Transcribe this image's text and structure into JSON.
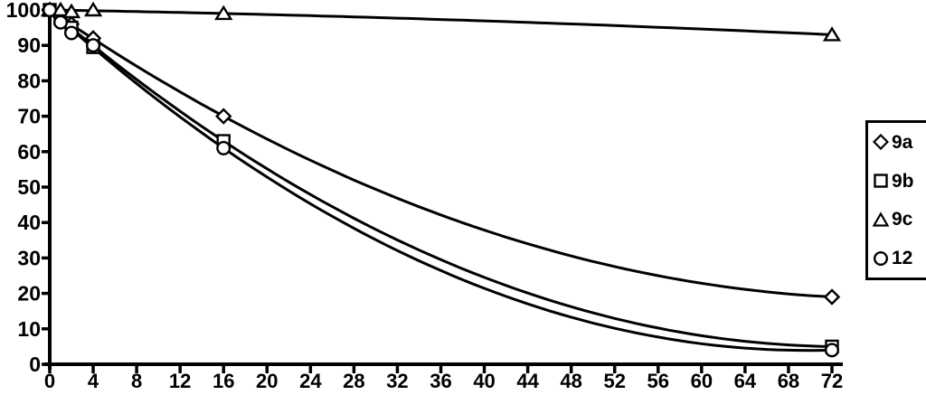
{
  "legend": {
    "items": [
      {
        "label": "9a",
        "marker": "diamond"
      },
      {
        "label": "9b",
        "marker": "square"
      },
      {
        "label": "9c",
        "marker": "triangle"
      },
      {
        "label": "12",
        "marker": "circle"
      }
    ]
  },
  "chart_data": {
    "type": "line",
    "title": "",
    "xlabel": "",
    "ylabel": "",
    "xlim": [
      0,
      72
    ],
    "ylim": [
      0,
      100
    ],
    "x_ticks": [
      0,
      4,
      8,
      12,
      16,
      20,
      24,
      28,
      32,
      36,
      40,
      44,
      48,
      52,
      56,
      60,
      64,
      68,
      72
    ],
    "y_ticks": [
      0,
      10,
      20,
      30,
      40,
      50,
      60,
      70,
      80,
      90,
      100
    ],
    "grid": "off",
    "legend_position": "right",
    "line_color": "#000000",
    "background": "#ffffff",
    "series": [
      {
        "name": "9a",
        "marker": "diamond",
        "points": [
          [
            0,
            100
          ],
          [
            1,
            98
          ],
          [
            2,
            96
          ],
          [
            4,
            92
          ],
          [
            16,
            70
          ],
          [
            72,
            19
          ]
        ]
      },
      {
        "name": "9b",
        "marker": "square",
        "points": [
          [
            0,
            100
          ],
          [
            1,
            97.5
          ],
          [
            2,
            95
          ],
          [
            4,
            89.5
          ],
          [
            16,
            63
          ],
          [
            72,
            5
          ]
        ]
      },
      {
        "name": "9c",
        "marker": "triangle",
        "points": [
          [
            0,
            100
          ],
          [
            1,
            100
          ],
          [
            2,
            99.5
          ],
          [
            4,
            100
          ],
          [
            16,
            99
          ],
          [
            72,
            93
          ]
        ]
      },
      {
        "name": "12",
        "marker": "circle",
        "points": [
          [
            0,
            100
          ],
          [
            1,
            96.5
          ],
          [
            2,
            93.5
          ],
          [
            4,
            90
          ],
          [
            16,
            61
          ],
          [
            72,
            4
          ]
        ]
      }
    ]
  }
}
